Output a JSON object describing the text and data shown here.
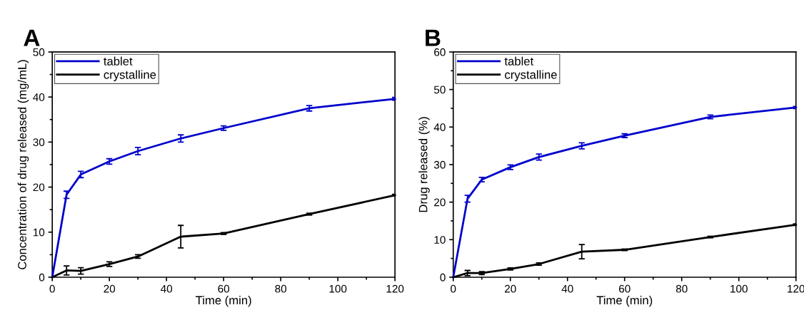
{
  "chart_data": [
    {
      "type": "line",
      "title": "A",
      "xlabel": "Time (min)",
      "ylabel": "Concentration of drug released (mg/mL)",
      "x": [
        0,
        5,
        10,
        20,
        30,
        45,
        60,
        90,
        120
      ],
      "series": [
        {
          "name": "tablet",
          "color": "#0000cc",
          "values": [
            0,
            18.3,
            22.8,
            25.7,
            28.0,
            30.8,
            33.1,
            37.5,
            39.6
          ],
          "errors": [
            null,
            0.8,
            0.7,
            0.6,
            0.8,
            0.8,
            0.5,
            0.6,
            0.3
          ]
        },
        {
          "name": "crystalline",
          "color": "#000000",
          "values": [
            0,
            1.5,
            1.4,
            2.9,
            4.6,
            9.0,
            9.7,
            14.0,
            18.2
          ],
          "errors": [
            null,
            1.0,
            0.7,
            0.5,
            0.4,
            2.5,
            0.2,
            0.2,
            0.2
          ]
        }
      ],
      "xlim": [
        0,
        120
      ],
      "xticks": [
        0,
        20,
        40,
        60,
        80,
        100,
        120
      ],
      "ylim": [
        0,
        50
      ],
      "yticks": [
        0,
        10,
        20,
        30,
        40,
        50
      ],
      "legend": "top left",
      "grid": false,
      "marker": "none",
      "line_style": "solid"
    },
    {
      "type": "line",
      "title": "B",
      "xlabel": "Time (min)",
      "ylabel": "Drug released (%)",
      "x": [
        0,
        5,
        10,
        20,
        30,
        45,
        60,
        90,
        120
      ],
      "series": [
        {
          "name": "tablet",
          "color": "#0000cc",
          "values": [
            0,
            20.9,
            26.0,
            29.3,
            32.0,
            35.0,
            37.7,
            42.7,
            45.2
          ],
          "errors": [
            null,
            0.9,
            0.6,
            0.6,
            0.8,
            0.8,
            0.5,
            0.5,
            0.3
          ]
        },
        {
          "name": "crystalline",
          "color": "#000000",
          "values": [
            0,
            1.1,
            1.1,
            2.2,
            3.5,
            6.8,
            7.3,
            10.7,
            14.0
          ],
          "errors": [
            null,
            0.7,
            0.4,
            0.3,
            0.3,
            1.9,
            0.2,
            0.2,
            0.2
          ]
        }
      ],
      "xlim": [
        0,
        120
      ],
      "xticks": [
        0,
        20,
        40,
        60,
        80,
        100,
        120
      ],
      "ylim": [
        0,
        60
      ],
      "yticks": [
        0,
        10,
        20,
        30,
        40,
        50,
        60
      ],
      "legend": "top left",
      "grid": false,
      "marker": "none",
      "line_style": "solid"
    }
  ]
}
